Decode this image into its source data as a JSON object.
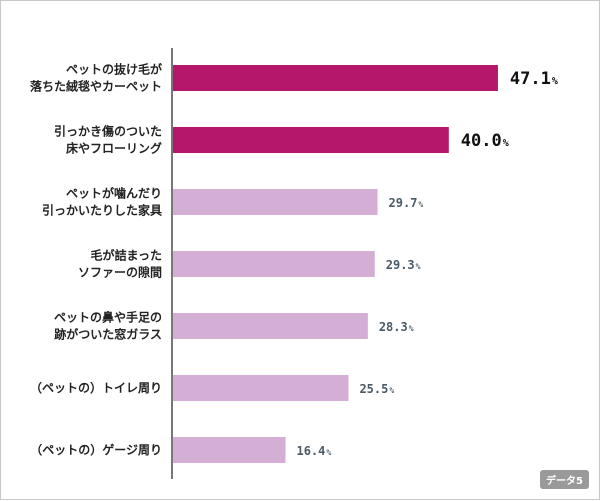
{
  "chart_data": {
    "type": "bar",
    "orientation": "horizontal",
    "categories": [
      [
        "ペットの抜け毛が",
        "落ちた絨毯やカーペット"
      ],
      [
        "引っかき傷のついた",
        "床やフローリング"
      ],
      [
        "ペットが噛んだり",
        "引っかいたりした家具"
      ],
      [
        "毛が詰まった",
        "ソファーの隙間"
      ],
      [
        "ペットの鼻や手足の",
        "跡がついた窓ガラス"
      ],
      [
        "（ペットの）トイレ周り"
      ],
      [
        "（ペットの）ゲージ周り"
      ]
    ],
    "values": [
      47.1,
      40.0,
      29.7,
      29.3,
      28.3,
      25.5,
      16.4
    ],
    "value_labels": [
      "47.1",
      "40.0",
      "29.7",
      "29.3",
      "28.3",
      "25.5",
      "16.4"
    ],
    "unit": "%",
    "highlight_count": 2,
    "colors": {
      "highlight": "#b5176a",
      "normal": "#d4aed4",
      "axis": "#777777"
    },
    "xlim": [
      0,
      50
    ],
    "grid": false
  },
  "badge": "データ5"
}
